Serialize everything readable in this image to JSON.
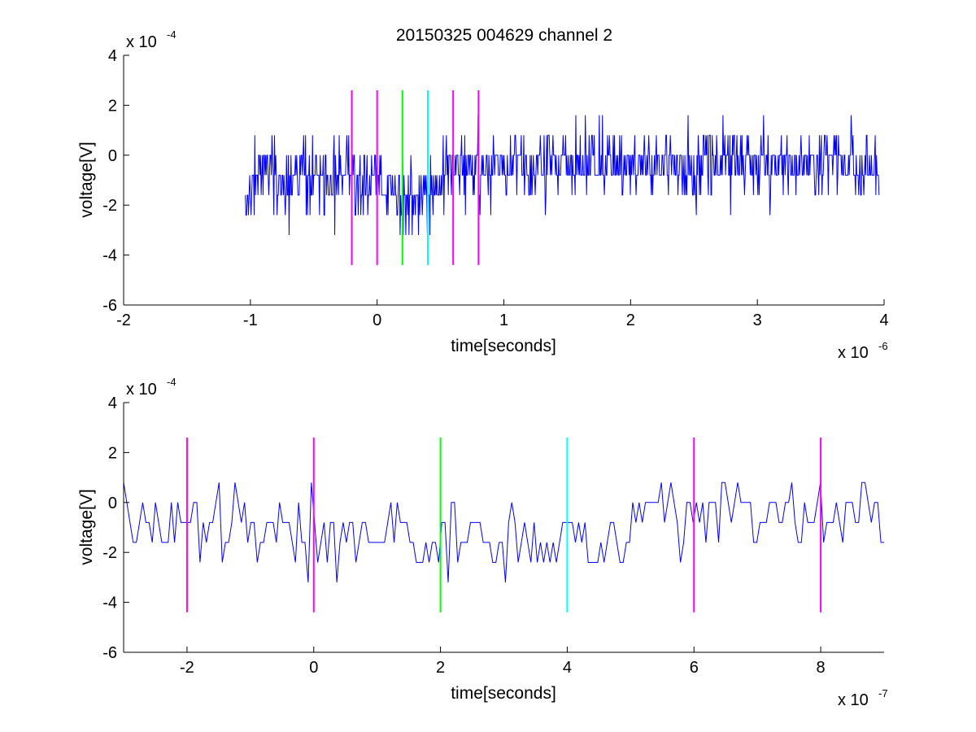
{
  "chart_data": [
    {
      "type": "line",
      "title": "20150325 004629 channel 2",
      "xlabel": "time[seconds]",
      "ylabel": "voltage[V]",
      "x_multiplier": "x 10",
      "x_exponent": "-6",
      "y_multiplier": "x 10",
      "y_exponent": "-4",
      "xlim": [
        -2,
        4
      ],
      "ylim": [
        -6,
        4
      ],
      "xticks": [
        "-2",
        "-1",
        "0",
        "1",
        "2",
        "3",
        "4"
      ],
      "yticks": [
        "-6",
        "-4",
        "-2",
        "0",
        "2",
        "4"
      ],
      "grid": false,
      "signal": {
        "color": "#0000ff",
        "x_start": -1.04,
        "x_end": 3.96,
        "num_samples": 1000,
        "level_step": 0.8,
        "segments": [
          {
            "x_from": -1.04,
            "x_to": 0.05,
            "mean": -0.9,
            "sd": 0.75
          },
          {
            "x_from": 0.05,
            "x_to": 0.5,
            "mean": -1.7,
            "sd": 0.7
          },
          {
            "x_from": 0.5,
            "x_to": 3.96,
            "mean": -0.4,
            "sd": 0.7
          }
        ],
        "ymin": -4.0,
        "ymax": 2.4
      },
      "markers": [
        {
          "x": -0.2,
          "color": "#ff00ff"
        },
        {
          "x": 0.0,
          "color": "#ff00ff"
        },
        {
          "x": 0.2,
          "color": "#00ff00"
        },
        {
          "x": 0.4,
          "color": "#00ffff"
        },
        {
          "x": 0.6,
          "color": "#ff00ff"
        },
        {
          "x": 0.8,
          "color": "#ff00ff"
        }
      ],
      "marker_y_range": [
        -4.4,
        2.6
      ]
    },
    {
      "type": "line",
      "xlabel": "time[seconds]",
      "ylabel": "voltage[V]",
      "x_multiplier": "x 10",
      "x_exponent": "-7",
      "y_multiplier": "x 10",
      "y_exponent": "-4",
      "xlim": [
        -3,
        9
      ],
      "ylim": [
        -6,
        4
      ],
      "xticks": [
        "-2",
        "0",
        "2",
        "4",
        "6",
        "8"
      ],
      "yticks": [
        "-6",
        "-4",
        "-2",
        "0",
        "2",
        "4"
      ],
      "grid": false,
      "signal": {
        "color": "#0000ff",
        "x_start": -3,
        "x_end": 9,
        "num_samples": 240,
        "level_step": 0.8,
        "segments": [
          {
            "x_from": -3,
            "x_to": -0.2,
            "mean": -0.8,
            "sd": 0.75
          },
          {
            "x_from": -0.2,
            "x_to": 5.0,
            "mean": -1.7,
            "sd": 0.75
          },
          {
            "x_from": 5.0,
            "x_to": 9,
            "mean": -0.3,
            "sd": 0.75
          }
        ],
        "ymin": -4.0,
        "ymax": 2.4
      },
      "markers": [
        {
          "x": -2,
          "color": "#ff00ff"
        },
        {
          "x": 0,
          "color": "#ff00ff"
        },
        {
          "x": 2,
          "color": "#00ff00"
        },
        {
          "x": 4,
          "color": "#00ffff"
        },
        {
          "x": 6,
          "color": "#ff00ff"
        },
        {
          "x": 8,
          "color": "#ff00ff"
        }
      ],
      "marker_y_range": [
        -4.4,
        2.6
      ]
    }
  ]
}
